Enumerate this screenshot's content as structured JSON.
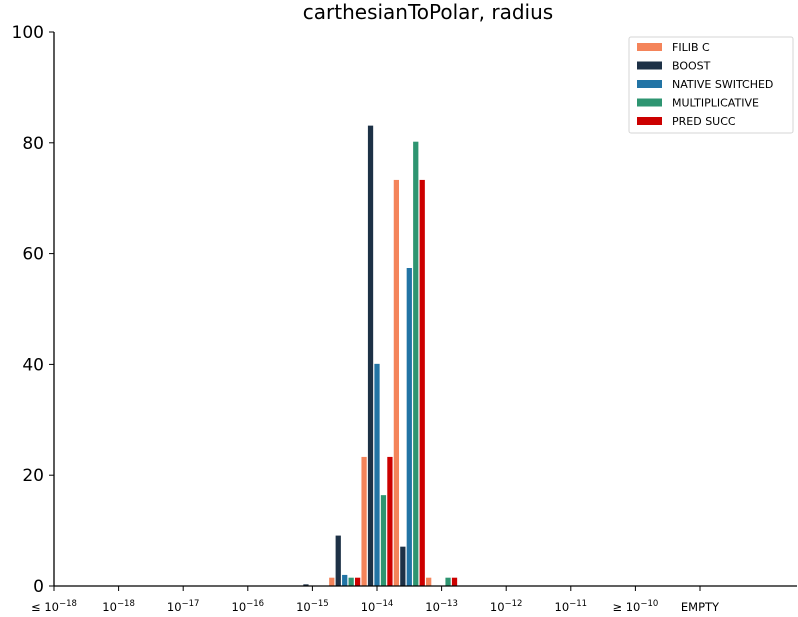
{
  "chart_data": {
    "type": "bar",
    "title": "carthesianToPolar, radius",
    "xlabel": "",
    "ylabel": "",
    "ylim": [
      0,
      100
    ],
    "yticks": [
      "0",
      "20",
      "40",
      "60",
      "80",
      "100"
    ],
    "categories": [
      {
        "base": "≤ 10",
        "exp": "−18"
      },
      {
        "base": "10",
        "exp": "−18"
      },
      {
        "base": "10",
        "exp": "−17"
      },
      {
        "base": "10",
        "exp": "−16"
      },
      {
        "base": "10",
        "exp": "−15"
      },
      {
        "base": "10",
        "exp": "−14"
      },
      {
        "base": "10",
        "exp": "−13"
      },
      {
        "base": "10",
        "exp": "−12"
      },
      {
        "base": "10",
        "exp": "−11"
      },
      {
        "base": "≥ 10",
        "exp": "−10"
      },
      {
        "base": "EMPTY",
        "exp": ""
      }
    ],
    "bins": [
      "10^-15.5",
      "10^-15",
      "10^-14.5",
      "10^-14",
      "10^-13.5",
      "10^-13",
      "10^-12.5"
    ],
    "legend_position": "top-right",
    "grid": false,
    "series": [
      {
        "name": "FILIB C",
        "color": "#f4845a",
        "values": [
          0,
          0,
          1.5,
          23.3,
          73.3,
          1.5,
          0
        ]
      },
      {
        "name": "BOOST",
        "color": "#1d3146",
        "values": [
          0,
          0.3,
          9.1,
          83.1,
          7.1,
          0,
          0
        ]
      },
      {
        "name": "NATIVE SWITCHED",
        "color": "#2274a5",
        "values": [
          0,
          0,
          2.0,
          40.1,
          57.4,
          0,
          0
        ]
      },
      {
        "name": "MULTIPLICATIVE",
        "color": "#2e9571",
        "values": [
          0,
          0,
          1.5,
          16.4,
          80.2,
          1.5,
          0
        ]
      },
      {
        "name": "PRED SUCC",
        "color": "#cc0000",
        "values": [
          0,
          0,
          1.5,
          23.3,
          73.3,
          1.5,
          0
        ]
      }
    ]
  }
}
